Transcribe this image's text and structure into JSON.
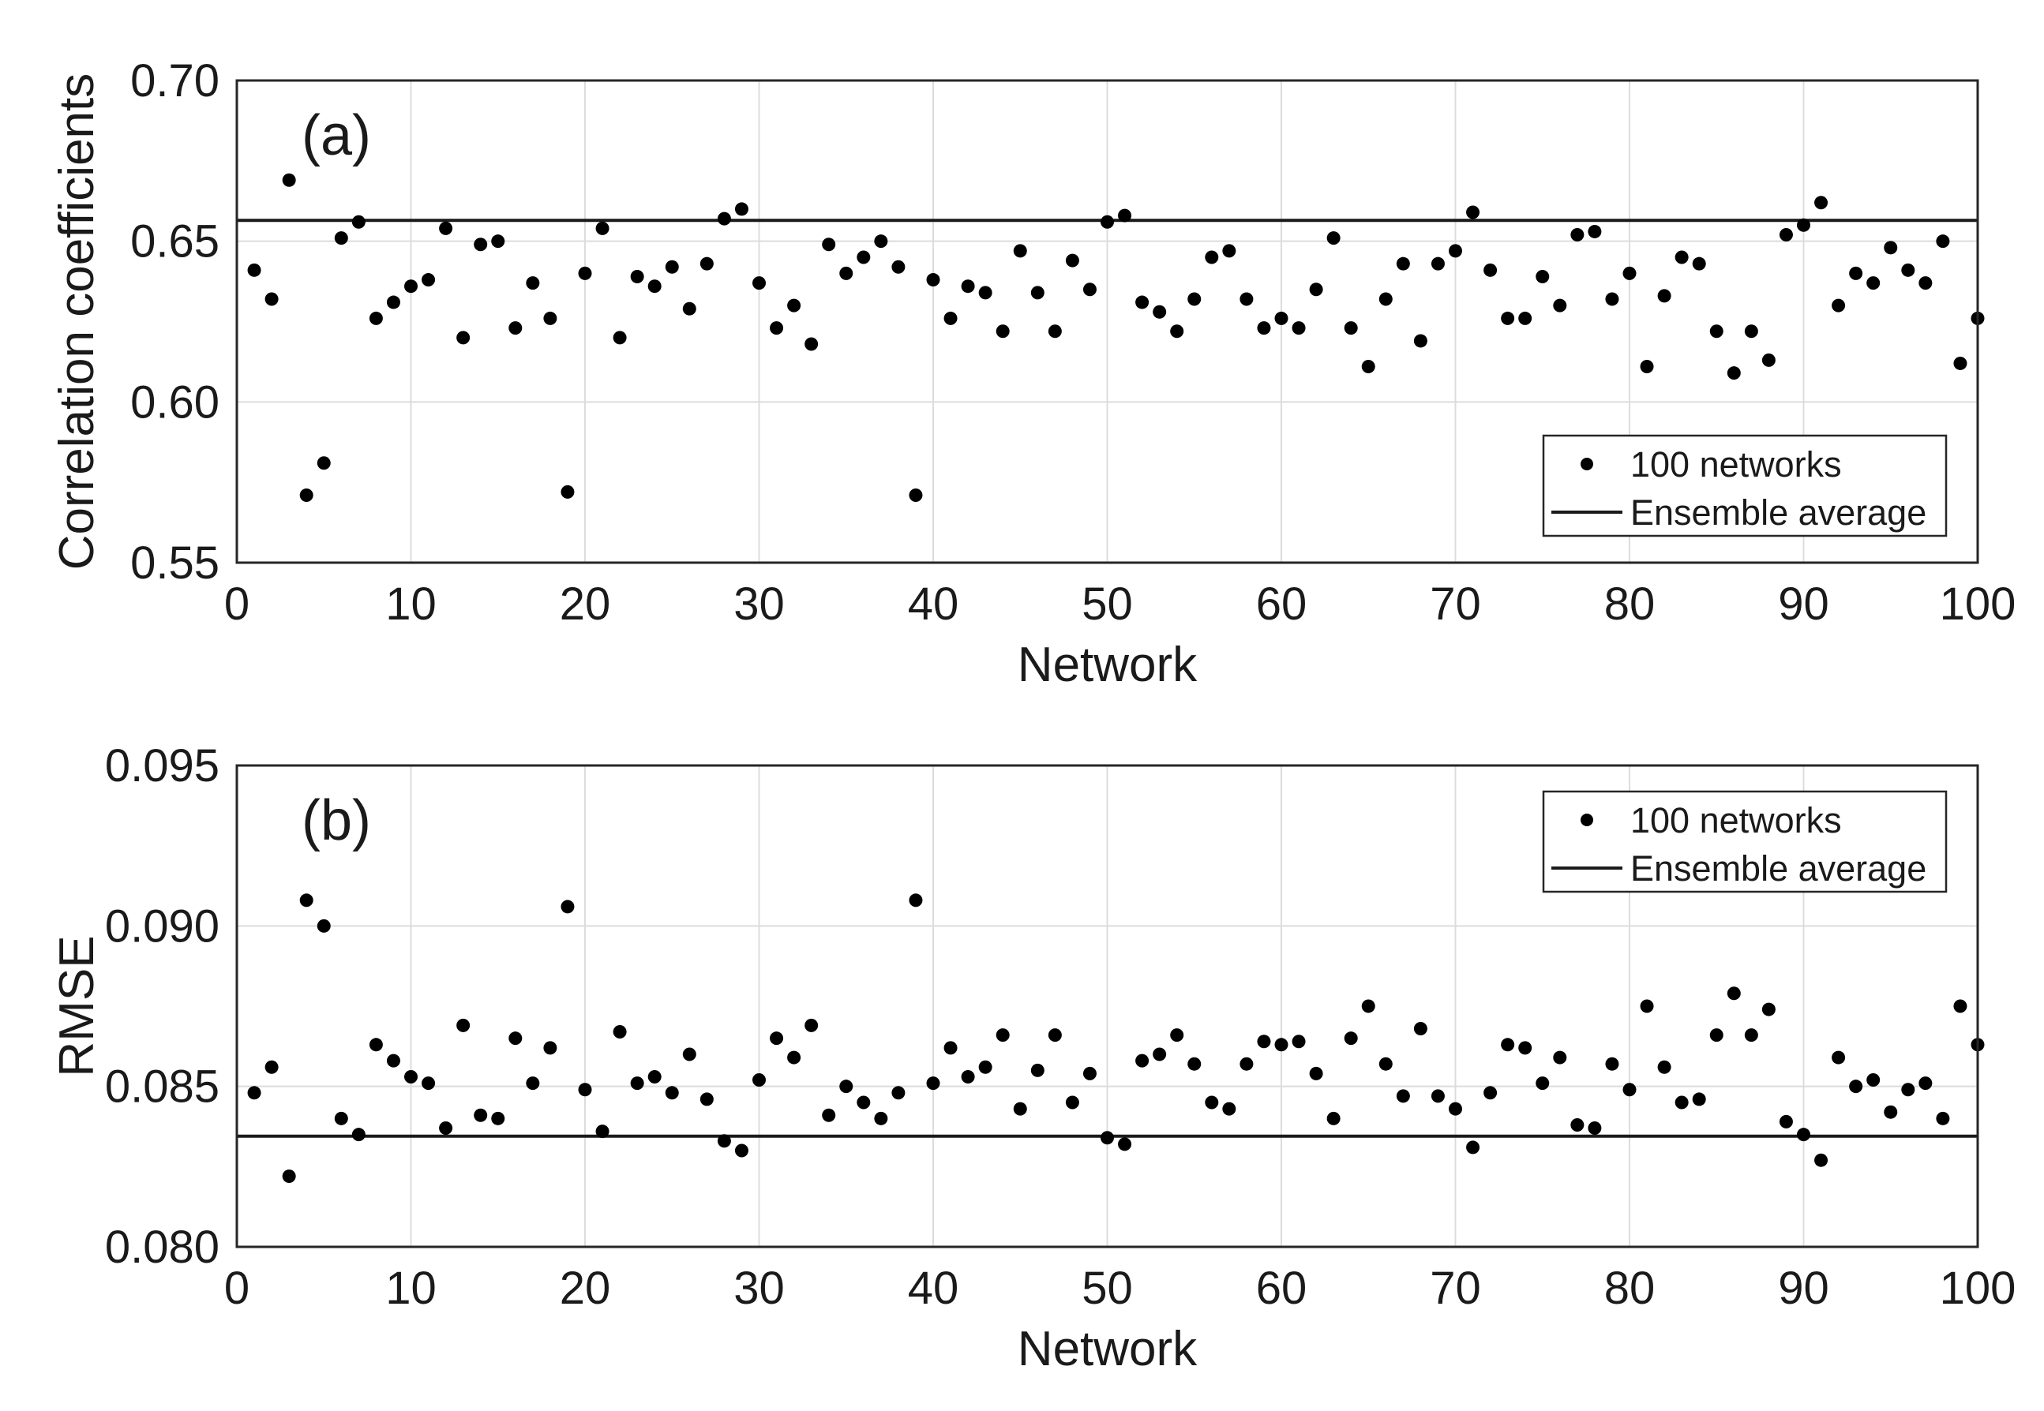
{
  "chart_data": [
    {
      "type": "scatter",
      "panel_label": "(a)",
      "xlabel": "Network",
      "ylabel": "Correlation coefficients",
      "xlim": [
        0,
        100
      ],
      "ylim": [
        0.55,
        0.7
      ],
      "xticks": [
        "0",
        "10",
        "20",
        "30",
        "40",
        "50",
        "60",
        "70",
        "80",
        "90",
        "100"
      ],
      "yticks": [
        "0.55",
        "0.60",
        "0.65",
        "0.70"
      ],
      "grid": true,
      "legend_position": "bottom-right",
      "legend": [
        "100 networks",
        "Ensemble average"
      ],
      "series": [
        {
          "name": "100 networks",
          "x": [
            1,
            2,
            3,
            4,
            5,
            6,
            7,
            8,
            9,
            10,
            11,
            12,
            13,
            14,
            15,
            16,
            17,
            18,
            19,
            20,
            21,
            22,
            23,
            24,
            25,
            26,
            27,
            28,
            29,
            30,
            31,
            32,
            33,
            34,
            35,
            36,
            37,
            38,
            39,
            40,
            41,
            42,
            43,
            44,
            45,
            46,
            47,
            48,
            49,
            50,
            51,
            52,
            53,
            54,
            55,
            56,
            57,
            58,
            59,
            60,
            61,
            62,
            63,
            64,
            65,
            66,
            67,
            68,
            69,
            70,
            71,
            72,
            73,
            74,
            75,
            76,
            77,
            78,
            79,
            80,
            81,
            82,
            83,
            84,
            85,
            86,
            87,
            88,
            89,
            90,
            91,
            92,
            93,
            94,
            95,
            96,
            97,
            98,
            99,
            100
          ],
          "y": [
            0.641,
            0.632,
            0.669,
            0.571,
            0.581,
            0.651,
            0.656,
            0.626,
            0.631,
            0.636,
            0.638,
            0.654,
            0.62,
            0.649,
            0.65,
            0.623,
            0.637,
            0.626,
            0.572,
            0.64,
            0.654,
            0.62,
            0.639,
            0.636,
            0.642,
            0.629,
            0.643,
            0.657,
            0.66,
            0.637,
            0.623,
            0.63,
            0.618,
            0.649,
            0.64,
            0.645,
            0.65,
            0.642,
            0.571,
            0.638,
            0.626,
            0.636,
            0.634,
            0.622,
            0.647,
            0.634,
            0.622,
            0.644,
            0.635,
            0.656,
            0.658,
            0.631,
            0.628,
            0.622,
            0.632,
            0.645,
            0.647,
            0.632,
            0.623,
            0.626,
            0.623,
            0.635,
            0.651,
            0.623,
            0.611,
            0.632,
            0.643,
            0.619,
            0.643,
            0.647,
            0.659,
            0.641,
            0.626,
            0.626,
            0.639,
            0.63,
            0.652,
            0.653,
            0.632,
            0.64,
            0.611,
            0.633,
            0.645,
            0.643,
            0.622,
            0.609,
            0.622,
            0.613,
            0.652,
            0.655,
            0.662,
            0.63,
            0.64,
            0.637,
            0.648,
            0.641,
            0.637,
            0.65,
            0.612,
            0.626
          ]
        },
        {
          "name": "Ensemble average",
          "y_constant": 0.6565
        }
      ]
    },
    {
      "type": "scatter",
      "panel_label": "(b)",
      "xlabel": "Network",
      "ylabel": "RMSE",
      "xlim": [
        0,
        100
      ],
      "ylim": [
        0.08,
        0.095
      ],
      "xticks": [
        "0",
        "10",
        "20",
        "30",
        "40",
        "50",
        "60",
        "70",
        "80",
        "90",
        "100"
      ],
      "yticks": [
        "0.080",
        "0.085",
        "0.090",
        "0.095"
      ],
      "grid": true,
      "legend_position": "top-right",
      "legend": [
        "100 networks",
        "Ensemble average"
      ],
      "series": [
        {
          "name": "100 networks",
          "x": [
            1,
            2,
            3,
            4,
            5,
            6,
            7,
            8,
            9,
            10,
            11,
            12,
            13,
            14,
            15,
            16,
            17,
            18,
            19,
            20,
            21,
            22,
            23,
            24,
            25,
            26,
            27,
            28,
            29,
            30,
            31,
            32,
            33,
            34,
            35,
            36,
            37,
            38,
            39,
            40,
            41,
            42,
            43,
            44,
            45,
            46,
            47,
            48,
            49,
            50,
            51,
            52,
            53,
            54,
            55,
            56,
            57,
            58,
            59,
            60,
            61,
            62,
            63,
            64,
            65,
            66,
            67,
            68,
            69,
            70,
            71,
            72,
            73,
            74,
            75,
            76,
            77,
            78,
            79,
            80,
            81,
            82,
            83,
            84,
            85,
            86,
            87,
            88,
            89,
            90,
            91,
            92,
            93,
            94,
            95,
            96,
            97,
            98,
            99,
            100
          ],
          "y": [
            0.0848,
            0.0856,
            0.0822,
            0.0908,
            0.09,
            0.084,
            0.0835,
            0.0863,
            0.0858,
            0.0853,
            0.0851,
            0.0837,
            0.0869,
            0.0841,
            0.084,
            0.0865,
            0.0851,
            0.0862,
            0.0906,
            0.0849,
            0.0836,
            0.0867,
            0.0851,
            0.0853,
            0.0848,
            0.086,
            0.0846,
            0.0833,
            0.083,
            0.0852,
            0.0865,
            0.0859,
            0.0869,
            0.0841,
            0.085,
            0.0845,
            0.084,
            0.0848,
            0.0908,
            0.0851,
            0.0862,
            0.0853,
            0.0856,
            0.0866,
            0.0843,
            0.0855,
            0.0866,
            0.0845,
            0.0854,
            0.0834,
            0.0832,
            0.0858,
            0.086,
            0.0866,
            0.0857,
            0.0845,
            0.0843,
            0.0857,
            0.0864,
            0.0863,
            0.0864,
            0.0854,
            0.084,
            0.0865,
            0.0875,
            0.0857,
            0.0847,
            0.0868,
            0.0847,
            0.0843,
            0.0831,
            0.0848,
            0.0863,
            0.0862,
            0.0851,
            0.0859,
            0.0838,
            0.0837,
            0.0857,
            0.0849,
            0.0875,
            0.0856,
            0.0845,
            0.0846,
            0.0866,
            0.0879,
            0.0866,
            0.0874,
            0.0839,
            0.0835,
            0.0827,
            0.0859,
            0.085,
            0.0852,
            0.0842,
            0.0849,
            0.0851,
            0.084,
            0.0875,
            0.0863
          ]
        },
        {
          "name": "Ensemble average",
          "y_constant": 0.08345
        }
      ]
    }
  ]
}
